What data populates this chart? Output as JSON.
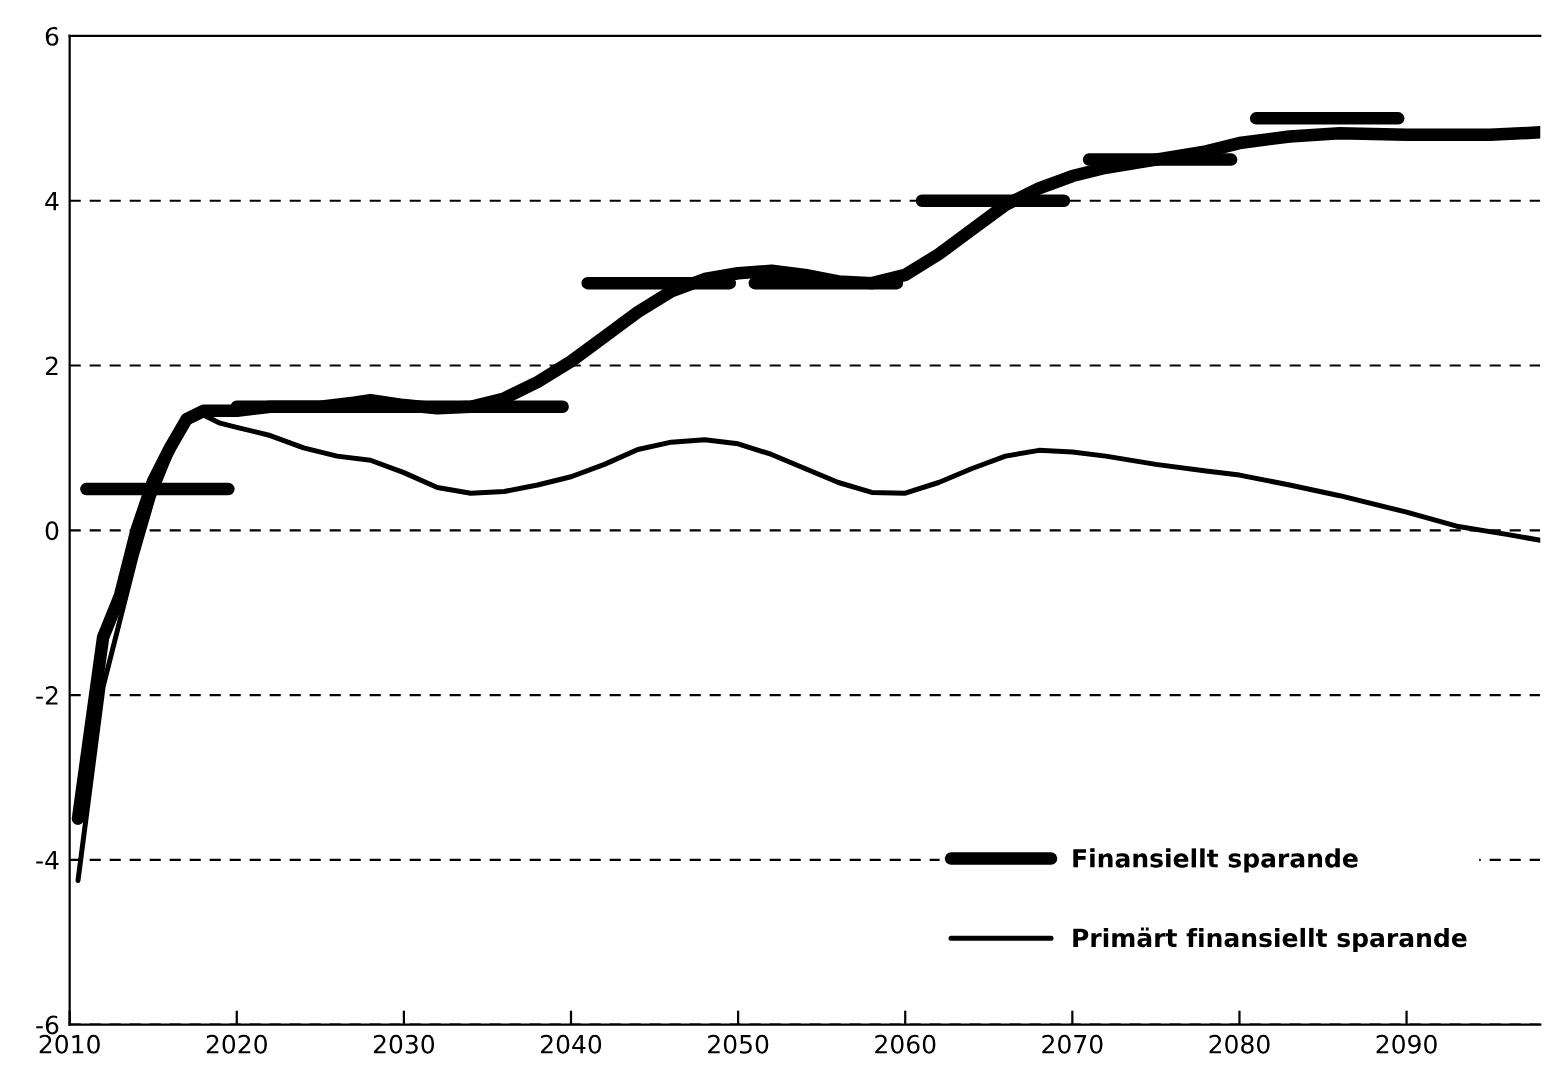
{
  "chart_data": {
    "type": "line",
    "xlim": [
      2010,
      2098
    ],
    "xticks": [
      2010,
      2020,
      2030,
      2040,
      2050,
      2060,
      2070,
      2080,
      2090
    ],
    "ylim": [
      -6,
      6
    ],
    "yticks": [
      -6,
      -4,
      -2,
      0,
      2,
      4,
      6
    ],
    "grid": "y",
    "legend": "bottom right",
    "line_style": "solid",
    "marker": "none",
    "series": [
      {
        "name": "Finansiellt sparande",
        "color": "#000000",
        "x": [
          2010.5,
          2012,
          2013,
          2014,
          2015,
          2016,
          2017,
          2018,
          2020,
          2022,
          2025,
          2027,
          2028,
          2030,
          2032,
          2034,
          2036,
          2038,
          2040,
          2042,
          2044,
          2046,
          2048,
          2050,
          2052,
          2054,
          2056,
          2058,
          2060,
          2062,
          2064,
          2066,
          2068,
          2070,
          2072,
          2075,
          2078,
          2080,
          2083,
          2086,
          2090,
          2095,
          2098
        ],
        "values": [
          -3.5,
          -1.3,
          -0.8,
          0,
          0.6,
          1.0,
          1.35,
          1.45,
          1.45,
          1.5,
          1.5,
          1.55,
          1.58,
          1.52,
          1.48,
          1.5,
          1.6,
          1.8,
          2.05,
          2.35,
          2.65,
          2.9,
          3.05,
          3.12,
          3.15,
          3.1,
          3.02,
          3.0,
          3.1,
          3.35,
          3.65,
          3.95,
          4.15,
          4.3,
          4.4,
          4.5,
          4.6,
          4.7,
          4.78,
          4.82,
          4.8,
          4.8,
          4.83
        ]
      },
      {
        "name": "Primärt finansiellt sparande",
        "color": "#000000",
        "x": [
          2010.5,
          2012,
          2013,
          2014,
          2015,
          2016,
          2017,
          2018,
          2019,
          2020,
          2022,
          2024,
          2026,
          2028,
          2030,
          2032,
          2034,
          2036,
          2038,
          2040,
          2042,
          2044,
          2046,
          2048,
          2050,
          2052,
          2054,
          2056,
          2058,
          2060,
          2062,
          2064,
          2066,
          2068,
          2070,
          2072,
          2075,
          2078,
          2080,
          2083,
          2086,
          2090,
          2093,
          2096,
          2098
        ],
        "values": [
          -4.25,
          -1.9,
          -1.1,
          -0.3,
          0.4,
          0.9,
          1.3,
          1.4,
          1.3,
          1.25,
          1.15,
          1.0,
          0.9,
          0.85,
          0.7,
          0.52,
          0.45,
          0.47,
          0.55,
          0.65,
          0.8,
          0.98,
          1.07,
          1.1,
          1.05,
          0.92,
          0.75,
          0.58,
          0.46,
          0.45,
          0.58,
          0.75,
          0.9,
          0.97,
          0.95,
          0.9,
          0.8,
          0.72,
          0.67,
          0.55,
          0.42,
          0.22,
          0.05,
          -0.05,
          -0.12
        ]
      },
      {
        "color": "#000000",
        "x": [
          2011,
          2019.5,
          2019.7,
          2020,
          2039.5,
          2040,
          2041,
          2049.5,
          2050,
          2051,
          2059.5,
          2060,
          2061,
          2069.5,
          2070,
          2071,
          2079.5,
          2080,
          2081,
          2089.5
        ],
        "values": [
          0.5,
          0.5,
          null,
          1.5,
          1.5,
          null,
          3,
          3,
          null,
          3,
          3,
          null,
          4,
          4,
          null,
          4.5,
          4.5,
          null,
          5,
          5
        ]
      }
    ]
  }
}
